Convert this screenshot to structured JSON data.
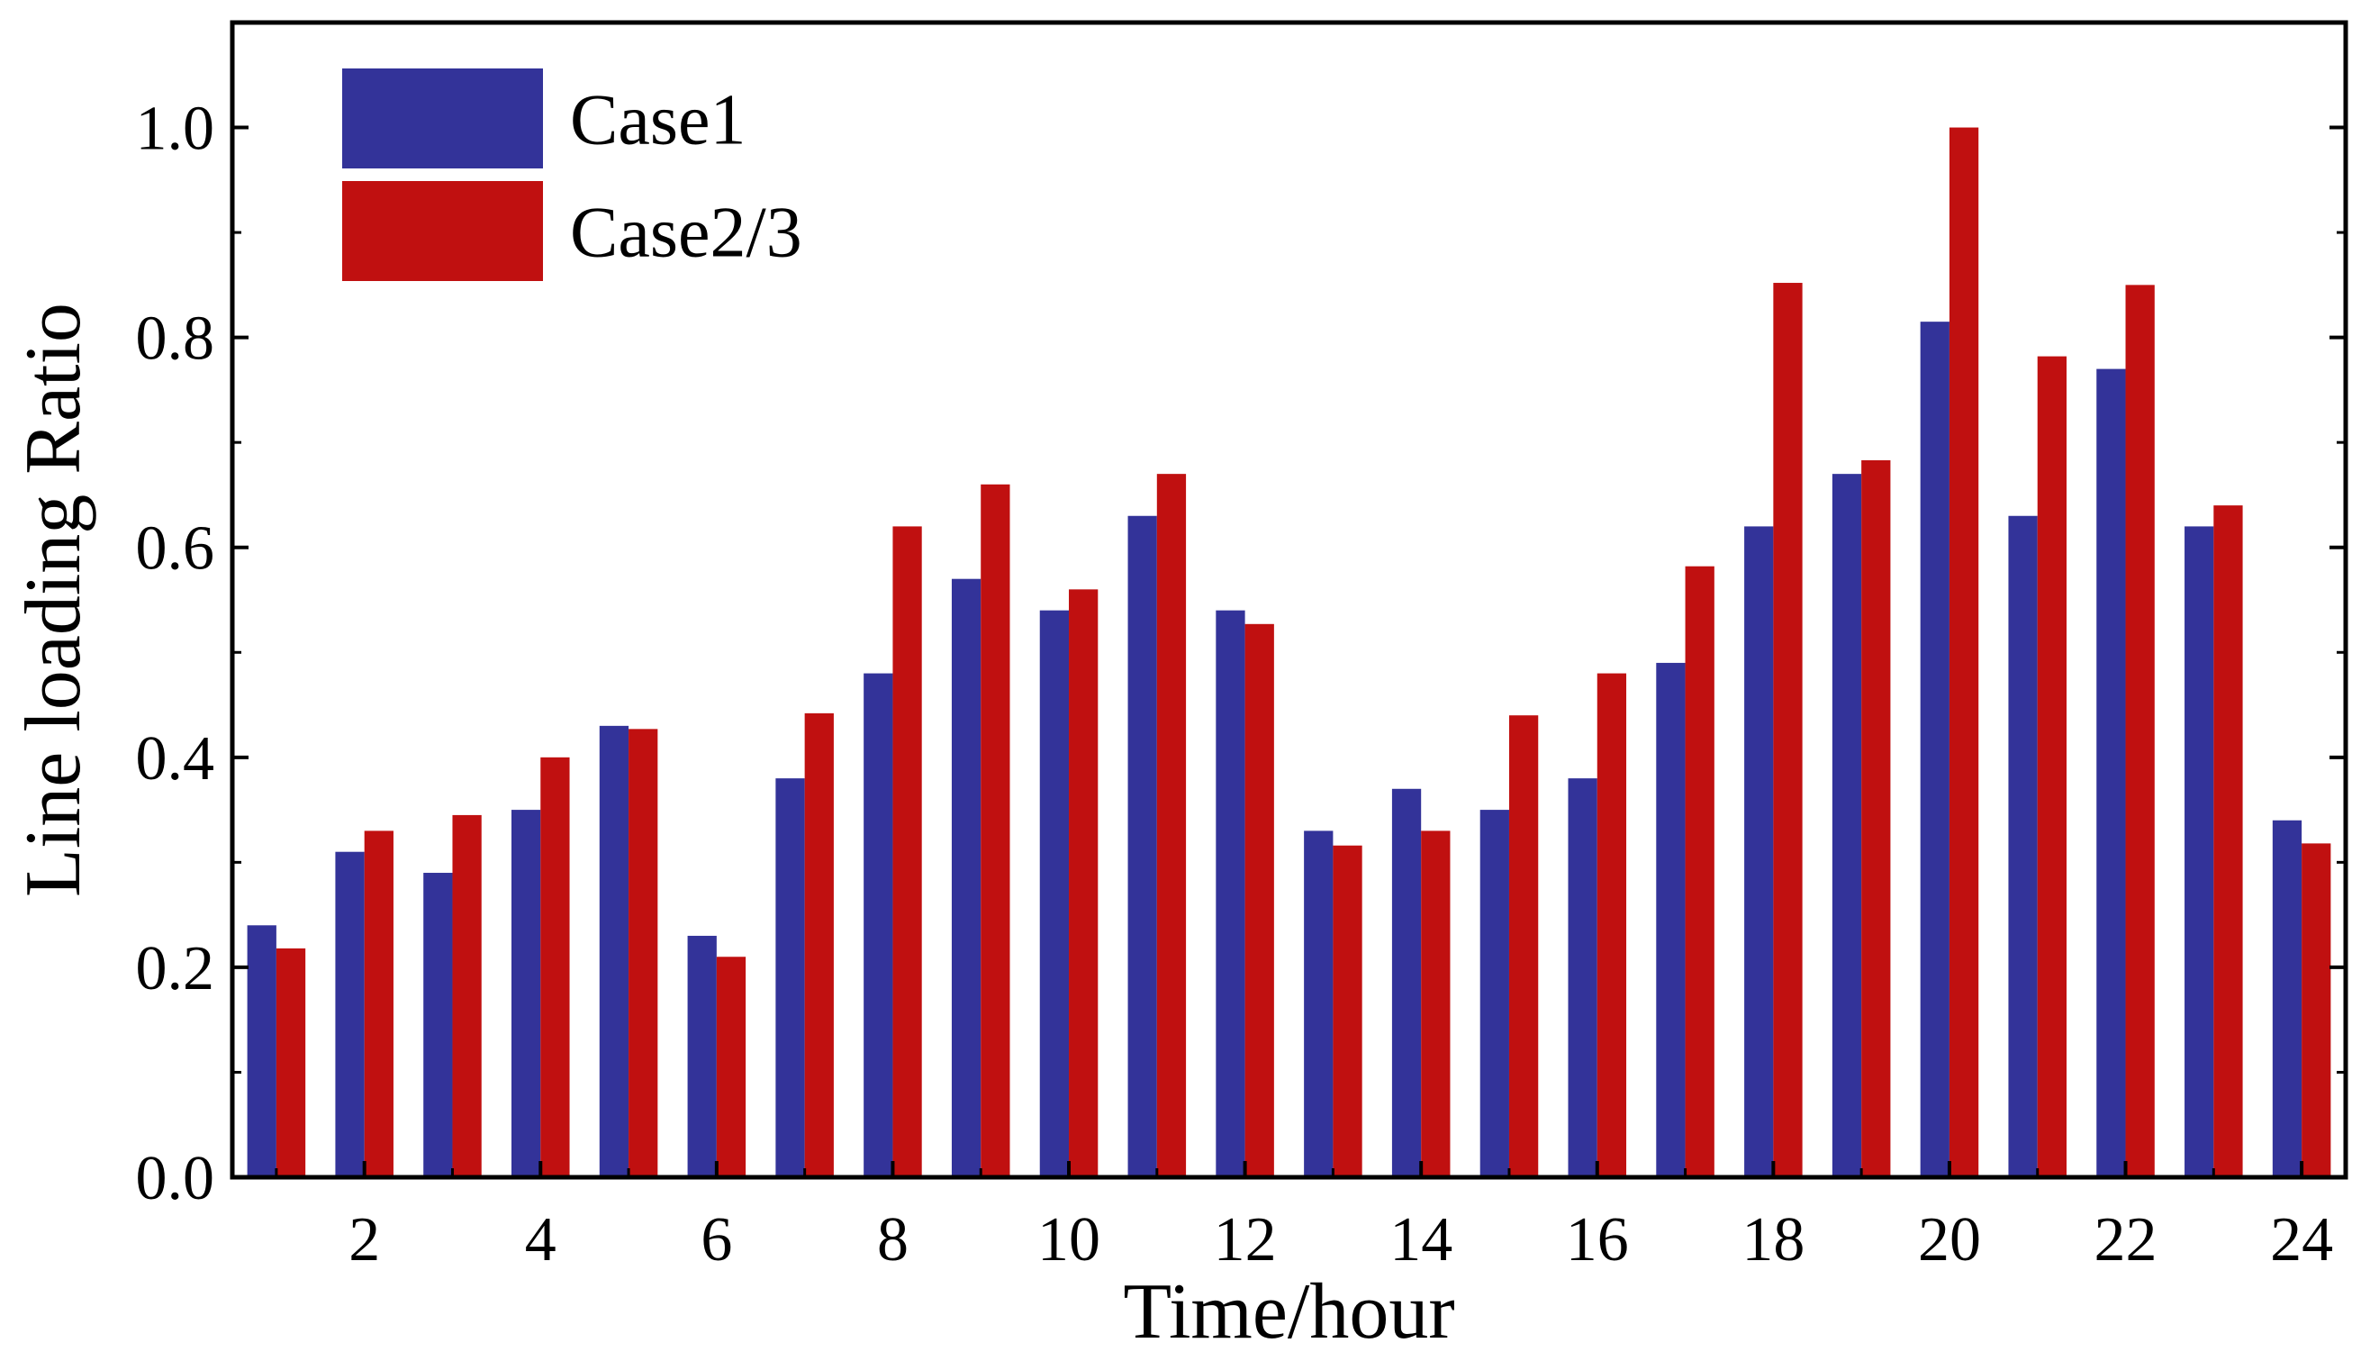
{
  "chart_data": {
    "type": "bar",
    "xlabel": "Time/hour",
    "ylabel": "Line loading Ratio",
    "ylim": [
      0,
      1.1
    ],
    "xlim": [
      0.5,
      24.5
    ],
    "yticks": [
      "0.0",
      "0.2",
      "0.4",
      "0.6",
      "0.8",
      "1.0"
    ],
    "xticks": [
      "2",
      "4",
      "6",
      "8",
      "10",
      "12",
      "14",
      "16",
      "18",
      "20",
      "22",
      "24"
    ],
    "categories": [
      1,
      2,
      3,
      4,
      5,
      6,
      7,
      8,
      9,
      10,
      11,
      12,
      13,
      14,
      15,
      16,
      17,
      18,
      19,
      20,
      21,
      22,
      23,
      24
    ],
    "series": [
      {
        "name": "Case1",
        "color": "#333399",
        "values": [
          0.24,
          0.31,
          0.29,
          0.35,
          0.43,
          0.23,
          0.38,
          0.48,
          0.57,
          0.54,
          0.63,
          0.54,
          0.33,
          0.37,
          0.35,
          0.38,
          0.49,
          0.62,
          0.67,
          0.815,
          0.63,
          0.77,
          0.62,
          0.34
        ]
      },
      {
        "name": "Case2/3",
        "color": "#C01010",
        "values": [
          0.218,
          0.33,
          0.345,
          0.4,
          0.427,
          0.21,
          0.442,
          0.62,
          0.66,
          0.56,
          0.67,
          0.527,
          0.316,
          0.33,
          0.44,
          0.48,
          0.582,
          0.852,
          0.683,
          1.0,
          0.782,
          0.85,
          0.64,
          0.318
        ]
      }
    ],
    "legend_position": "top-left",
    "grid": false
  }
}
